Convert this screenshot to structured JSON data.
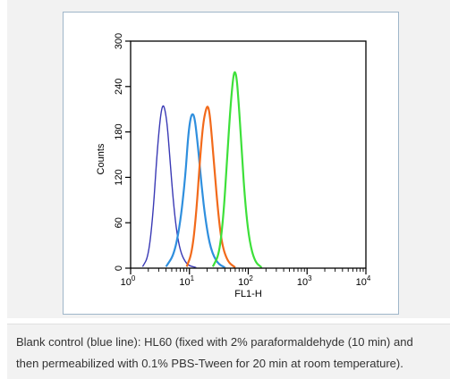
{
  "chart_data": {
    "type": "line",
    "xscale": "log",
    "xlabel": "FL1-H",
    "ylabel": "Counts",
    "xlim": [
      1,
      10000
    ],
    "ylim": [
      0,
      300
    ],
    "xticks": [
      {
        "value": 1,
        "base": "10",
        "exp": "0"
      },
      {
        "value": 10,
        "base": "10",
        "exp": "1"
      },
      {
        "value": 100,
        "base": "10",
        "exp": "2"
      },
      {
        "value": 1000,
        "base": "10",
        "exp": "3"
      },
      {
        "value": 10000,
        "base": "10",
        "exp": "4"
      }
    ],
    "yticks": [
      "0",
      "60",
      "120",
      "180",
      "240",
      "300"
    ],
    "ytick_values": [
      0,
      60,
      120,
      180,
      240,
      300
    ],
    "series": [
      {
        "color": "#3a3ab5",
        "x": [
          1.6,
          2.0,
          2.4,
          2.8,
          3.2,
          3.5,
          3.8,
          4.2,
          4.7,
          5.3,
          6.0,
          7.0,
          8.5,
          10,
          13
        ],
        "y": [
          2,
          15,
          70,
          150,
          200,
          216,
          212,
          190,
          140,
          90,
          50,
          22,
          8,
          3,
          1
        ]
      },
      {
        "color": "#2f8fde",
        "x": [
          4,
          5.5,
          7,
          8.5,
          9.5,
          10.5,
          11.5,
          12.5,
          14,
          16,
          19,
          23,
          30,
          40
        ],
        "y": [
          2,
          18,
          60,
          120,
          175,
          200,
          205,
          195,
          160,
          110,
          60,
          25,
          6,
          1
        ]
      },
      {
        "color": "#f26a1b",
        "x": [
          9,
          11,
          13,
          15,
          17,
          19,
          20.5,
          22,
          24,
          27,
          31,
          36,
          45,
          60
        ],
        "y": [
          2,
          20,
          70,
          140,
          190,
          210,
          215,
          205,
          175,
          125,
          70,
          30,
          8,
          1
        ]
      },
      {
        "color": "#3de03a",
        "x": [
          25,
          32,
          38,
          44,
          50,
          55,
          59,
          64,
          70,
          78,
          90,
          105,
          130,
          170
        ],
        "y": [
          2,
          18,
          70,
          150,
          215,
          250,
          262,
          250,
          210,
          150,
          80,
          35,
          8,
          1
        ]
      }
    ]
  },
  "caption": {
    "line1": "Blank control (blue line): HL60 (fixed with 2% paraformaldehyde (10 min) and",
    "line2": "then permeabilized with 0.1% PBS-Tween for 20 min at room temperature)."
  }
}
